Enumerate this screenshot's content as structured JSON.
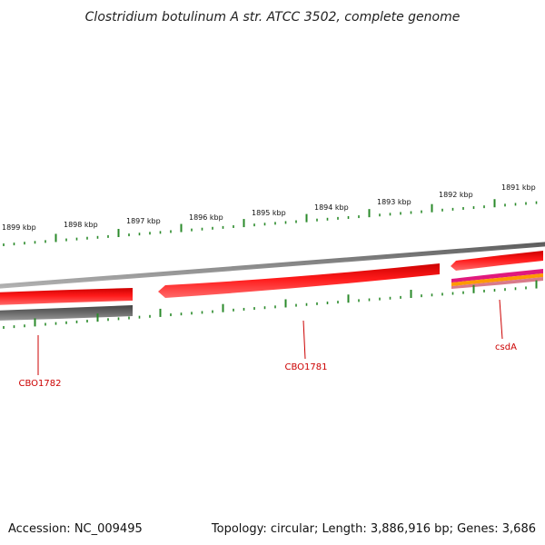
{
  "map": {
    "title": "Clostridium botulinum A str. ATCC 3502, complete genome",
    "accession_label": "Accession: NC_009495",
    "summary_label": "Topology: circular; Length: 3,886,916 bp; Genes: 3,686",
    "colors": {
      "forward_gene": "#ff0000",
      "backbone": "#8a8a8a",
      "reverse_backbone": "#606060",
      "tick": "#2a8a2a",
      "label": "#cc0000",
      "magenta_feature": "#e0197d",
      "orange_feature": "#ff9900"
    },
    "kbp_labels": [
      "1899 kbp",
      "1898 kbp",
      "1897 kbp",
      "1896 kbp",
      "1895 kbp",
      "1894 kbp",
      "1893 kbp",
      "1892 kbp",
      "1891 kbp"
    ],
    "genes": [
      {
        "name": "CBO1782",
        "icon": "gene-arrow-icon"
      },
      {
        "name": "CBO1781",
        "icon": "gene-arrow-icon"
      },
      {
        "name": "csdA",
        "icon": "gene-arrow-icon"
      }
    ]
  }
}
